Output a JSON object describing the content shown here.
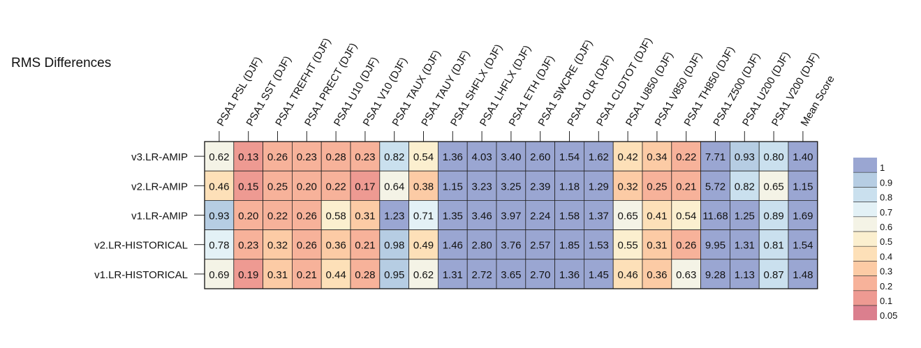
{
  "chart_data": {
    "type": "heatmap",
    "title": "RMS Differences",
    "columns": [
      "PSA1 PSL (DJF)",
      "PSA1 SST (DJF)",
      "PSA1 TREFHT (DJF)",
      "PSA1 PRECT (DJF)",
      "PSA1 U10 (DJF)",
      "PSA1 V10 (DJF)",
      "PSA1 TAUX (DJF)",
      "PSA1 TAUY (DJF)",
      "PSA1 SHFLX (DJF)",
      "PSA1 LHFLX (DJF)",
      "PSA1 ETH (DJF)",
      "PSA1 SWCRE (DJF)",
      "PSA1 OLR (DJF)",
      "PSA1 CLDTOT (DJF)",
      "PSA1 U850 (DJF)",
      "PSA1 V850 (DJF)",
      "PSA1 TH850 (DJF)",
      "PSA1 Z500 (DJF)",
      "PSA1 U200 (DJF)",
      "PSA1 V200 (DJF)",
      "Mean Score"
    ],
    "rows": [
      "v3.LR-AMIP",
      "v2.LR-AMIP",
      "v1.LR-AMIP",
      "v2.LR-HISTORICAL",
      "v1.LR-HISTORICAL"
    ],
    "values": [
      [
        0.62,
        0.13,
        0.26,
        0.23,
        0.28,
        0.23,
        0.82,
        0.54,
        1.36,
        4.03,
        3.4,
        2.6,
        1.54,
        1.62,
        0.42,
        0.34,
        0.22,
        7.71,
        0.93,
        0.8,
        1.4
      ],
      [
        0.46,
        0.15,
        0.25,
        0.2,
        0.22,
        0.17,
        0.64,
        0.38,
        1.15,
        3.23,
        3.25,
        2.39,
        1.18,
        1.29,
        0.32,
        0.25,
        0.21,
        5.72,
        0.82,
        0.65,
        1.15
      ],
      [
        0.93,
        0.2,
        0.22,
        0.26,
        0.58,
        0.31,
        1.23,
        0.71,
        1.35,
        3.46,
        3.97,
        2.24,
        1.58,
        1.37,
        0.65,
        0.41,
        0.54,
        11.68,
        1.25,
        0.89,
        1.69
      ],
      [
        0.78,
        0.23,
        0.32,
        0.26,
        0.36,
        0.21,
        0.98,
        0.49,
        1.46,
        2.8,
        3.76,
        2.57,
        1.85,
        1.53,
        0.55,
        0.31,
        0.26,
        9.95,
        1.31,
        0.81,
        1.54
      ],
      [
        0.69,
        0.19,
        0.31,
        0.21,
        0.44,
        0.28,
        0.95,
        0.62,
        1.31,
        2.72,
        3.65,
        2.7,
        1.36,
        1.45,
        0.46,
        0.36,
        0.63,
        9.28,
        1.13,
        0.87,
        1.48
      ]
    ],
    "colorbar": {
      "labels": [
        "1",
        "0.9",
        "0.8",
        "0.7",
        "0.6",
        "0.5",
        "0.4",
        "0.3",
        "0.2",
        "0.1",
        "0.05"
      ],
      "colors": [
        "#9AA6D2",
        "#B6CDE3",
        "#CAE0EE",
        "#E3F1F6",
        "#F4F3E6",
        "#FBEFCF",
        "#FDE0B8",
        "#FCCBA5",
        "#F7B29A",
        "#EE9A92",
        "#DB7F8E"
      ],
      "thresholds": [
        1,
        0.9,
        0.8,
        0.7,
        0.6,
        0.5,
        0.4,
        0.3,
        0.2,
        0.1,
        0.05
      ]
    }
  }
}
